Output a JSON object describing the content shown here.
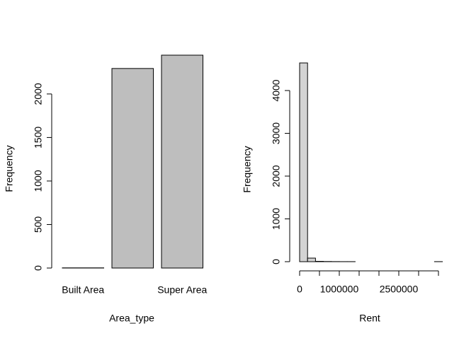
{
  "chart_data": [
    {
      "type": "bar",
      "x_label": "Area_type",
      "y_label": "Frequency",
      "categories": [
        "Built Area",
        null,
        "Super Area"
      ],
      "values": [
        2,
        2293,
        2446
      ],
      "color": "#bebebe",
      "ylim": [
        0,
        2446
      ],
      "yticks": [
        0,
        500,
        1000,
        1500,
        2000
      ]
    },
    {
      "type": "histogram",
      "x_label": "Rent",
      "y_label": "Frequency",
      "bins": [
        0,
        200000,
        400000,
        600000,
        800000,
        1000000,
        1200000,
        1400000,
        1600000,
        1800000,
        2000000,
        2200000,
        2400000,
        2600000,
        2800000,
        3000000,
        3200000,
        3400000,
        3600000
      ],
      "values": [
        4645,
        83,
        8,
        4,
        2,
        1,
        1,
        0,
        0,
        0,
        0,
        0,
        0,
        0,
        0,
        0,
        0,
        1
      ],
      "color": "#d3d3d3",
      "xlim": [
        0,
        3600000
      ],
      "ylim": [
        0,
        4645
      ],
      "xticks": [
        0,
        {
          "value": 500000,
          "label": null
        },
        1000000,
        {
          "value": 1500000,
          "label": null
        },
        {
          "value": 2000000,
          "label": null
        },
        2500000,
        {
          "value": 3000000,
          "label": null
        },
        {
          "value": 3500000,
          "label": null
        }
      ],
      "yticks": [
        0,
        1000,
        2000,
        3000,
        4000
      ]
    }
  ]
}
